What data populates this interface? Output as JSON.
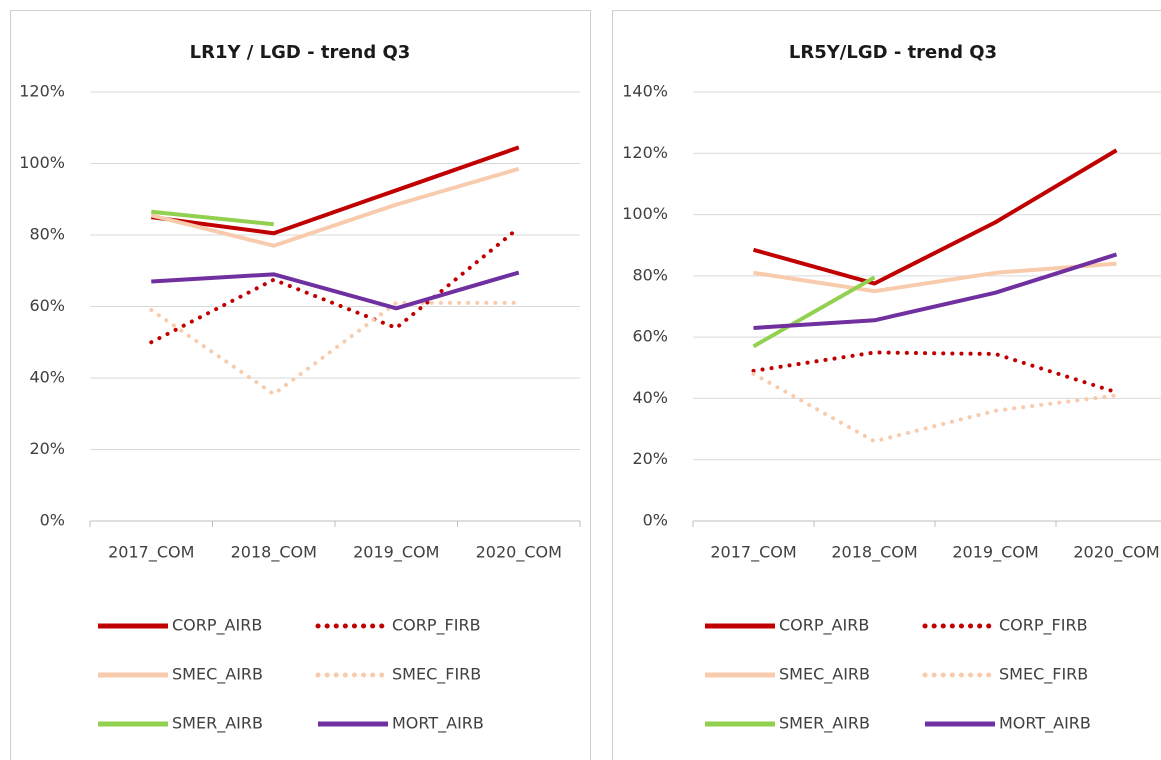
{
  "chart_data": [
    {
      "type": "line",
      "title": "LR1Y / LGD - trend Q3",
      "categories": [
        "2017_COM",
        "2018_COM",
        "2019_COM",
        "2020_COM"
      ],
      "ylim": [
        0,
        120
      ],
      "yticks": [
        {
          "value": 0,
          "label": "0%"
        },
        {
          "value": 20,
          "label": "20%"
        },
        {
          "value": 40,
          "label": "40%"
        },
        {
          "value": 60,
          "label": "60%"
        },
        {
          "value": 80,
          "label": "80%"
        },
        {
          "value": 100,
          "label": "100%"
        },
        {
          "value": 120,
          "label": "120%"
        }
      ],
      "grid": true,
      "series": [
        {
          "name": "CORP_AIRB",
          "color": "#c00000",
          "style": "solid",
          "values": [
            85,
            80.5,
            92.5,
            104.5
          ]
        },
        {
          "name": "CORP_FIRB",
          "color": "#c00000",
          "style": "dotted",
          "values": [
            50,
            67.5,
            54,
            82
          ]
        },
        {
          "name": "SMEC_AIRB",
          "color": "#f8cbad",
          "style": "solid",
          "values": [
            85.5,
            77,
            88.5,
            98.5
          ]
        },
        {
          "name": "SMEC_FIRB",
          "color": "#f8cbad",
          "style": "dotted",
          "values": [
            59,
            35.5,
            61,
            61
          ]
        },
        {
          "name": "SMER_AIRB",
          "color": "#92d050",
          "style": "solid",
          "values": [
            86.5,
            83,
            null,
            null
          ]
        },
        {
          "name": "MORT_AIRB",
          "color": "#7030a0",
          "style": "solid",
          "values": [
            67,
            69,
            59.5,
            69.5
          ]
        }
      ]
    },
    {
      "type": "line",
      "title": "LR5Y/LGD  - trend Q3",
      "categories": [
        "2017_COM",
        "2018_COM",
        "2019_COM",
        "2020_COM"
      ],
      "ylim": [
        0,
        140
      ],
      "yticks": [
        {
          "value": 0,
          "label": "0%"
        },
        {
          "value": 20,
          "label": "20%"
        },
        {
          "value": 40,
          "label": "40%"
        },
        {
          "value": 60,
          "label": "60%"
        },
        {
          "value": 80,
          "label": "80%"
        },
        {
          "value": 100,
          "label": "100%"
        },
        {
          "value": 120,
          "label": "120%"
        },
        {
          "value": 140,
          "label": "140%"
        }
      ],
      "grid": true,
      "series": [
        {
          "name": "CORP_AIRB",
          "color": "#c00000",
          "style": "solid",
          "values": [
            88.5,
            77.5,
            97.5,
            121
          ]
        },
        {
          "name": "CORP_FIRB",
          "color": "#c00000",
          "style": "dotted",
          "values": [
            49,
            55,
            54.5,
            42
          ]
        },
        {
          "name": "SMEC_AIRB",
          "color": "#f8cbad",
          "style": "solid",
          "values": [
            81,
            75,
            81,
            84
          ]
        },
        {
          "name": "SMEC_FIRB",
          "color": "#f8cbad",
          "style": "dotted",
          "values": [
            48,
            26,
            36,
            41
          ]
        },
        {
          "name": "SMER_AIRB",
          "color": "#92d050",
          "style": "solid",
          "values": [
            57,
            79.5,
            null,
            null
          ]
        },
        {
          "name": "MORT_AIRB",
          "color": "#7030a0",
          "style": "solid",
          "values": [
            63,
            65.5,
            74.5,
            87
          ]
        }
      ]
    }
  ]
}
